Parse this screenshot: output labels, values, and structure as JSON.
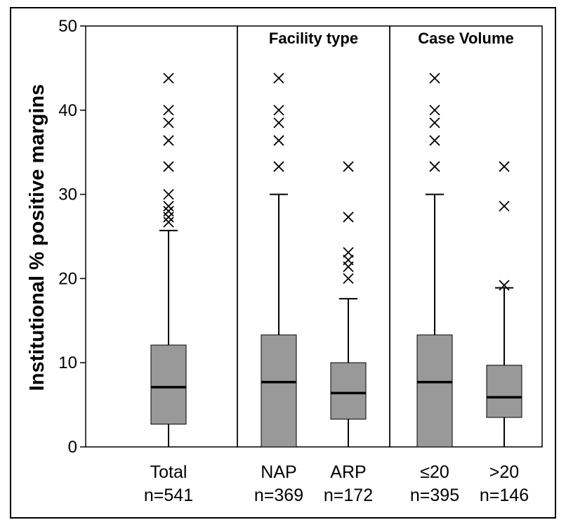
{
  "chart_data": {
    "type": "boxplot",
    "ylabel": "Institutional % positive margins",
    "ylim": [
      0,
      50
    ],
    "yticks": [
      0,
      10,
      20,
      30,
      40,
      50
    ],
    "ytick_labels": [
      "0",
      "10",
      "20",
      "30",
      "40",
      "50"
    ],
    "panels": [
      {
        "title": "",
        "categories": [
          "total"
        ]
      },
      {
        "title": "Facility type",
        "categories": [
          "nap",
          "arp"
        ]
      },
      {
        "title": "Case Volume",
        "categories": [
          "le20",
          "gt20"
        ]
      }
    ],
    "boxes": [
      {
        "id": "total",
        "label": "Total",
        "n_label": "n=541",
        "whisker_low": 0,
        "q1": 2.7,
        "median": 7.1,
        "q3": 12.1,
        "whisker_high": 25.7,
        "outliers": [
          26.7,
          27.3,
          28.0,
          28.6,
          30.0,
          33.3,
          36.4,
          38.5,
          40.0,
          43.8
        ]
      },
      {
        "id": "nap",
        "label": "NAP",
        "n_label": "n=369",
        "whisker_low": 0,
        "q1": 0,
        "median": 7.7,
        "q3": 13.3,
        "whisker_high": 30.0,
        "outliers": [
          33.3,
          36.4,
          38.5,
          40.0,
          43.8
        ]
      },
      {
        "id": "arp",
        "label": "ARP",
        "n_label": "n=172",
        "whisker_low": 0,
        "q1": 3.3,
        "median": 6.4,
        "q3": 10.0,
        "whisker_high": 17.6,
        "outliers": [
          20.0,
          21.4,
          22.2,
          23.1,
          27.3,
          33.3
        ]
      },
      {
        "id": "le20",
        "label": "≤20",
        "n_label": "n=395",
        "whisker_low": 0,
        "q1": 0,
        "median": 7.7,
        "q3": 13.3,
        "whisker_high": 30.0,
        "outliers": [
          33.3,
          36.4,
          38.5,
          40.0,
          43.8
        ]
      },
      {
        "id": "gt20",
        "label": ">20",
        "n_label": "n=146",
        "whisker_low": 0,
        "q1": 3.5,
        "median": 5.9,
        "q3": 9.7,
        "whisker_high": 18.9,
        "outliers": [
          19.2,
          28.6,
          33.3
        ]
      }
    ],
    "box_color": "#999999",
    "grid": false,
    "legend": "none"
  }
}
